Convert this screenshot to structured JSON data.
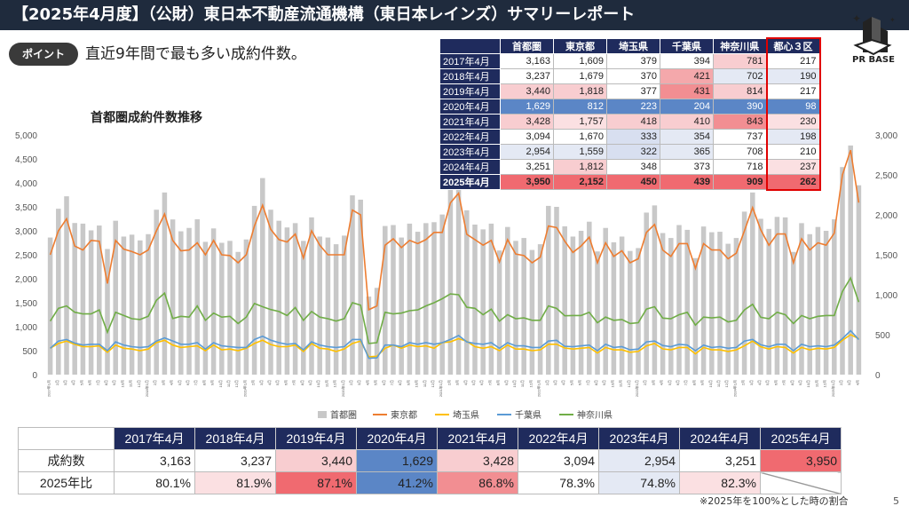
{
  "header": {
    "title": "【2025年4月度】（公財）東日本不動産流通機構（東日本レインズ）サマリーレポート"
  },
  "logo": {
    "text": "PR BASE"
  },
  "point": {
    "badge": "ポイント",
    "text": "直近9年間で最も多い成約件数。"
  },
  "colors": {
    "navy": "#1f2b5d",
    "red_highlight": "#e00000",
    "bar": "#c8c8c8",
    "tokyo": "#ed7d31",
    "saitama": "#ffc000",
    "chiba": "#5b9bd5",
    "kanagawa": "#70ad47"
  },
  "summary_table": {
    "headers": [
      "",
      "首都圏",
      "東京都",
      "埼玉県",
      "千葉県",
      "神奈川県",
      "都心３区"
    ],
    "rows": [
      {
        "year": "2017年4月",
        "values": [
          "3,163",
          "1,609",
          "379",
          "394",
          "781",
          "217"
        ],
        "colors": [
          "#ffffff",
          "#ffffff",
          "#ffffff",
          "#ffffff",
          "#f8cdd0",
          "#ffffff"
        ]
      },
      {
        "year": "2018年4月",
        "values": [
          "3,237",
          "1,679",
          "370",
          "421",
          "702",
          "190"
        ],
        "colors": [
          "#ffffff",
          "#ffffff",
          "#ffffff",
          "#f4a8ab",
          "#e4e9f4",
          "#e4e9f4"
        ]
      },
      {
        "year": "2019年4月",
        "values": [
          "3,440",
          "1,818",
          "377",
          "431",
          "814",
          "217"
        ],
        "colors": [
          "#f8cdd0",
          "#f8cdd0",
          "#ffffff",
          "#f28e92",
          "#f8cdd0",
          "#ffffff"
        ]
      },
      {
        "year": "2020年4月",
        "values": [
          "1,629",
          "812",
          "223",
          "204",
          "390",
          "98"
        ],
        "colors": [
          "#5b86c6",
          "#5b86c6",
          "#5b86c6",
          "#5b86c6",
          "#5b86c6",
          "#5b86c6"
        ]
      },
      {
        "year": "2021年4月",
        "values": [
          "3,428",
          "1,757",
          "418",
          "410",
          "843",
          "230"
        ],
        "colors": [
          "#f8cdd0",
          "#fbe0e2",
          "#f8cdd0",
          "#f8cdd0",
          "#f28e92",
          "#fbe0e2"
        ]
      },
      {
        "year": "2022年4月",
        "values": [
          "3,094",
          "1,670",
          "333",
          "354",
          "737",
          "198"
        ],
        "colors": [
          "#ffffff",
          "#ffffff",
          "#d8dff0",
          "#e4e9f4",
          "#ffffff",
          "#e4e9f4"
        ]
      },
      {
        "year": "2023年4月",
        "values": [
          "2,954",
          "1,559",
          "322",
          "365",
          "708",
          "210"
        ],
        "colors": [
          "#e4e9f4",
          "#e4e9f4",
          "#d8dff0",
          "#e4e9f4",
          "#ffffff",
          "#ffffff"
        ]
      },
      {
        "year": "2024年4月",
        "values": [
          "3,251",
          "1,812",
          "348",
          "373",
          "718",
          "237"
        ],
        "colors": [
          "#ffffff",
          "#f8cdd0",
          "#ffffff",
          "#ffffff",
          "#ffffff",
          "#fbe0e2"
        ]
      },
      {
        "year": "2025年4月",
        "values": [
          "3,950",
          "2,152",
          "450",
          "439",
          "909",
          "262"
        ],
        "colors": [
          "#f06a70",
          "#f06a70",
          "#f06a70",
          "#f06a70",
          "#f06a70",
          "#f06a70"
        ]
      }
    ]
  },
  "chart_data": {
    "type": "bar+line",
    "title": "首都圏成約件数推移",
    "y_left": {
      "ticks": [
        "0",
        "500",
        "1,000",
        "1,500",
        "2,000",
        "2,500",
        "3,000",
        "3,500",
        "4,000",
        "4,500",
        "5,000"
      ],
      "ylim": [
        0,
        5000
      ]
    },
    "y_right": {
      "ticks": [
        "0",
        "500",
        "1,000",
        "1,500",
        "2,000",
        "2,500",
        "3,000"
      ],
      "ylim": [
        0,
        3000
      ]
    },
    "x_start": "2017年1月",
    "x_end": "2025年4月",
    "x_tick_labels": [
      "2017年1月",
      "2月",
      "3月",
      "4月",
      "5月",
      "6月",
      "7月",
      "8月",
      "9月",
      "10月",
      "11月",
      "12月",
      "2018年1月",
      "2月",
      "3月",
      "4月",
      "5月",
      "6月",
      "7月",
      "8月",
      "9月",
      "10月",
      "11月",
      "12月",
      "2019年1月",
      "2月",
      "3月",
      "4月",
      "5月",
      "6月",
      "7月",
      "8月",
      "9月",
      "10月",
      "11月",
      "12月",
      "2020年1月",
      "2月",
      "3月",
      "4月",
      "5月",
      "6月",
      "7月",
      "8月",
      "9月",
      "10月",
      "11月",
      "12月",
      "2021年1月",
      "2月",
      "3月",
      "4月",
      "5月",
      "6月",
      "7月",
      "8月",
      "9月",
      "10月",
      "11月",
      "12月",
      "2022年1月",
      "2月",
      "3月",
      "4月",
      "5月",
      "6月",
      "7月",
      "8月",
      "9月",
      "10月",
      "11月",
      "12月",
      "2023年1月",
      "2月",
      "3月",
      "4月",
      "5月",
      "6月",
      "7月",
      "8月",
      "9月",
      "10月",
      "11月",
      "12月",
      "2024年1月",
      "2月",
      "3月",
      "4月",
      "5月",
      "6月",
      "7月",
      "8月",
      "9月",
      "10月",
      "11月",
      "12月",
      "2025年1月",
      "2月",
      "3月",
      "4月"
    ],
    "series": [
      {
        "name": "首都圏",
        "type": "bar",
        "axis": "left",
        "color": "#c8c8c8",
        "values": [
          2860,
          3460,
          3720,
          3163,
          3150,
          3010,
          3110,
          2620,
          3210,
          2880,
          2920,
          2800,
          2930,
          3440,
          3800,
          3237,
          2990,
          3060,
          3240,
          2770,
          3050,
          2750,
          2790,
          2560,
          2820,
          3520,
          4100,
          3440,
          3210,
          3070,
          3160,
          2790,
          3280,
          2880,
          2860,
          2720,
          2900,
          3740,
          3650,
          1629,
          1810,
          3100,
          3120,
          2860,
          3150,
          2980,
          3160,
          3180,
          3340,
          3930,
          4180,
          3428,
          3130,
          3030,
          3150,
          2590,
          3080,
          2790,
          2850,
          2600,
          2720,
          3520,
          3500,
          3094,
          2880,
          3000,
          3190,
          2570,
          3060,
          2760,
          2880,
          2580,
          2640,
          3380,
          3530,
          2954,
          2850,
          3120,
          3020,
          2430,
          3090,
          2970,
          2980,
          2730,
          2850,
          3400,
          3800,
          3251,
          3040,
          3290,
          3280,
          2560,
          3160,
          2930,
          3080,
          3000,
          3240,
          4330,
          4780,
          3950
        ]
      },
      {
        "name": "東京都",
        "type": "line",
        "axis": "right",
        "color": "#ed7d31",
        "values": [
          1500,
          1800,
          1950,
          1609,
          1560,
          1680,
          1670,
          1140,
          1680,
          1570,
          1540,
          1500,
          1560,
          1800,
          2010,
          1679,
          1550,
          1560,
          1650,
          1500,
          1680,
          1500,
          1490,
          1400,
          1500,
          1860,
          2120,
          1818,
          1690,
          1660,
          1760,
          1460,
          1800,
          1620,
          1500,
          1500,
          1500,
          2060,
          2000,
          812,
          860,
          1620,
          1700,
          1590,
          1680,
          1640,
          1690,
          1780,
          1780,
          2150,
          2270,
          1757,
          1690,
          1620,
          1680,
          1410,
          1690,
          1510,
          1490,
          1400,
          1470,
          1860,
          1840,
          1670,
          1530,
          1610,
          1720,
          1400,
          1650,
          1480,
          1550,
          1400,
          1450,
          1780,
          1880,
          1559,
          1480,
          1640,
          1640,
          1330,
          1640,
          1560,
          1560,
          1450,
          1520,
          1800,
          2090,
          1812,
          1620,
          1760,
          1760,
          1400,
          1700,
          1560,
          1650,
          1620,
          1770,
          2500,
          2810,
          2152
        ]
      },
      {
        "name": "埼玉県",
        "type": "line",
        "axis": "right",
        "color": "#ffc000",
        "values": [
          330,
          390,
          420,
          379,
          350,
          350,
          360,
          280,
          370,
          330,
          320,
          300,
          320,
          400,
          430,
          370,
          340,
          350,
          360,
          300,
          370,
          310,
          320,
          300,
          330,
          390,
          430,
          377,
          350,
          350,
          370,
          290,
          390,
          330,
          320,
          290,
          320,
          390,
          420,
          223,
          230,
          330,
          370,
          330,
          370,
          350,
          360,
          330,
          400,
          410,
          450,
          418,
          350,
          330,
          350,
          300,
          370,
          320,
          320,
          300,
          310,
          380,
          380,
          333,
          320,
          330,
          340,
          270,
          340,
          310,
          310,
          280,
          290,
          360,
          390,
          322,
          310,
          340,
          340,
          260,
          340,
          310,
          310,
          290,
          310,
          360,
          420,
          348,
          320,
          350,
          340,
          270,
          340,
          310,
          330,
          320,
          340,
          430,
          500,
          450
        ]
      },
      {
        "name": "千葉県",
        "type": "line",
        "axis": "right",
        "color": "#5b9bd5",
        "values": [
          330,
          420,
          440,
          394,
          370,
          380,
          380,
          300,
          410,
          370,
          350,
          340,
          350,
          420,
          460,
          421,
          380,
          380,
          400,
          320,
          400,
          360,
          350,
          340,
          340,
          440,
          480,
          431,
          400,
          380,
          390,
          310,
          410,
          370,
          350,
          340,
          350,
          440,
          440,
          204,
          210,
          370,
          370,
          350,
          400,
          380,
          400,
          380,
          400,
          440,
          490,
          410,
          390,
          380,
          400,
          330,
          400,
          360,
          360,
          340,
          340,
          420,
          430,
          354,
          350,
          360,
          370,
          300,
          380,
          340,
          350,
          310,
          320,
          410,
          420,
          365,
          350,
          380,
          370,
          300,
          370,
          340,
          350,
          330,
          340,
          420,
          440,
          373,
          350,
          380,
          380,
          300,
          380,
          350,
          360,
          350,
          370,
          450,
          550,
          439
        ]
      },
      {
        "name": "神奈川県",
        "type": "line",
        "axis": "right",
        "color": "#70ad47",
        "values": [
          670,
          830,
          860,
          781,
          760,
          760,
          810,
          530,
          780,
          740,
          700,
          690,
          730,
          930,
          1020,
          702,
          730,
          720,
          860,
          680,
          770,
          720,
          730,
          640,
          720,
          890,
          850,
          814,
          790,
          740,
          840,
          680,
          790,
          720,
          700,
          670,
          700,
          900,
          870,
          390,
          400,
          780,
          760,
          770,
          800,
          810,
          860,
          900,
          950,
          1010,
          1000,
          843,
          830,
          750,
          820,
          670,
          750,
          700,
          710,
          680,
          680,
          860,
          830,
          737,
          740,
          740,
          780,
          650,
          720,
          680,
          690,
          640,
          650,
          820,
          850,
          708,
          700,
          750,
          780,
          620,
          720,
          710,
          720,
          660,
          680,
          810,
          880,
          718,
          700,
          780,
          750,
          640,
          740,
          700,
          730,
          740,
          740,
          1040,
          1210,
          909
        ]
      }
    ]
  },
  "bottom_table": {
    "headers": [
      "2017年4月",
      "2018年4月",
      "2019年4月",
      "2020年4月",
      "2021年4月",
      "2022年4月",
      "2023年4月",
      "2024年4月",
      "2025年4月"
    ],
    "rows": [
      {
        "label": "成約数",
        "values": [
          "3,163",
          "3,237",
          "3,440",
          "1,629",
          "3,428",
          "3,094",
          "2,954",
          "3,251",
          "3,950"
        ],
        "colors": [
          "#ffffff",
          "#ffffff",
          "#f8cdd0",
          "#5b86c6",
          "#f8cdd0",
          "#ffffff",
          "#e4e9f4",
          "#ffffff",
          "#f06a70"
        ]
      },
      {
        "label": "2025年比",
        "values": [
          "80.1%",
          "81.9%",
          "87.1%",
          "41.2%",
          "86.8%",
          "78.3%",
          "74.8%",
          "82.3%",
          ""
        ],
        "colors": [
          "#ffffff",
          "#fbe0e2",
          "#f06a70",
          "#5b86c6",
          "#f28e92",
          "#ffffff",
          "#e4e9f4",
          "#fbe0e2",
          "#ffffff"
        ]
      }
    ]
  },
  "footnote": "※2025年を100%とした時の割合",
  "page_number": "5"
}
